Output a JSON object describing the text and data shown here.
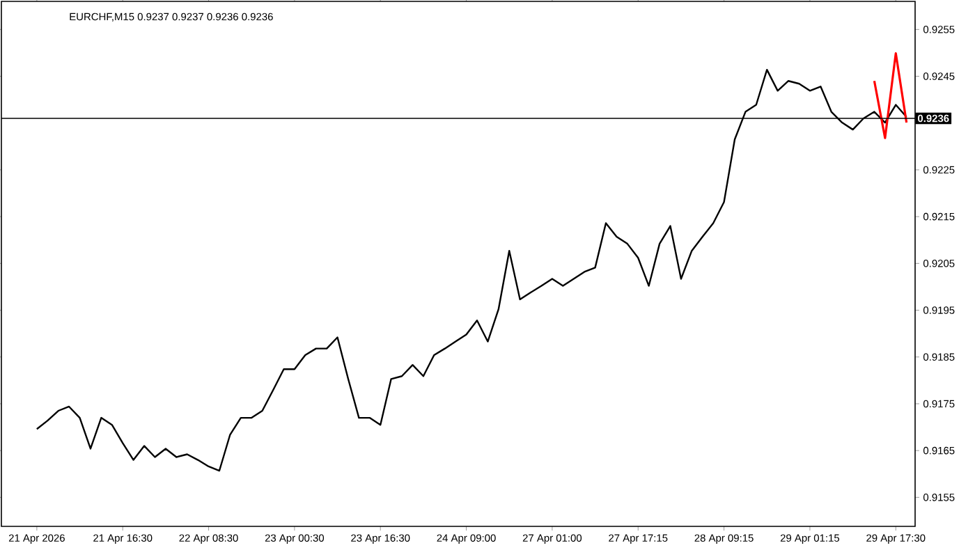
{
  "chart_data": {
    "type": "line",
    "title": "EURCHF,M15  0.9237 0.9237 0.9236 0.9236",
    "categories": [
      "21 Apr 2026",
      null,
      null,
      null,
      null,
      null,
      null,
      null,
      "21 Apr 16:30",
      null,
      null,
      null,
      null,
      null,
      null,
      null,
      "22 Apr 08:30",
      null,
      null,
      null,
      null,
      null,
      null,
      null,
      "23 Apr 00:30",
      null,
      null,
      null,
      null,
      null,
      null,
      null,
      "23 Apr 16:30",
      null,
      null,
      null,
      null,
      null,
      null,
      null,
      "24 Apr 09:00",
      null,
      null,
      null,
      null,
      null,
      null,
      null,
      "27 Apr 01:00",
      null,
      null,
      null,
      null,
      null,
      null,
      null,
      "27 Apr 17:15",
      null,
      null,
      null,
      null,
      null,
      null,
      null,
      "28 Apr 09:15",
      null,
      null,
      null,
      null,
      null,
      null,
      null,
      "29 Apr 01:15",
      null,
      null,
      null,
      null,
      null,
      null,
      null,
      "29 Apr 17:30",
      null
    ],
    "ylim": [
      0.91488,
      0.9261
    ],
    "yticks": [
      0.9155,
      0.9165,
      0.9175,
      0.9185,
      0.9195,
      0.9205,
      0.9215,
      0.9225,
      0.9245,
      0.9255
    ],
    "grid": false,
    "ref_lines": [
      {
        "axis": "y",
        "value": 0.9236,
        "label": "0.9236",
        "color": "#000000"
      }
    ],
    "series": [
      {
        "color": "#000000",
        "values": [
          0.91696,
          0.91714,
          0.91735,
          0.91744,
          0.9172,
          0.91654,
          0.9172,
          0.91705,
          0.91666,
          0.9163,
          0.9166,
          0.91636,
          0.91654,
          0.91636,
          0.91642,
          0.9163,
          0.91616,
          0.91607,
          0.91684,
          0.9172,
          0.9172,
          0.91735,
          0.91779,
          0.91824,
          0.91824,
          0.91854,
          0.91868,
          0.91868,
          0.91892,
          0.91803,
          0.9172,
          0.9172,
          0.91705,
          0.91803,
          0.91809,
          0.91833,
          0.91809,
          0.91854,
          0.91868,
          0.91883,
          0.91898,
          0.91928,
          0.91883,
          0.91952,
          0.92077,
          0.91973,
          0.91988,
          0.92002,
          0.92017,
          0.92002,
          0.92017,
          0.92032,
          0.92041,
          0.92136,
          0.92107,
          0.92092,
          0.92062,
          0.92002,
          0.92092,
          0.9213,
          0.92017,
          0.92077,
          0.92107,
          0.92136,
          0.92181,
          0.92315,
          0.92374,
          0.92389,
          0.92464,
          0.92419,
          0.9244,
          0.92434,
          0.92419,
          0.92428,
          0.92374,
          0.92351,
          0.92336,
          0.9236,
          0.92374,
          0.92351,
          0.92389,
          0.92363
        ]
      },
      {
        "color": "#ff0000",
        "values": [
          null,
          null,
          null,
          null,
          null,
          null,
          null,
          null,
          null,
          null,
          null,
          null,
          null,
          null,
          null,
          null,
          null,
          null,
          null,
          null,
          null,
          null,
          null,
          null,
          null,
          null,
          null,
          null,
          null,
          null,
          null,
          null,
          null,
          null,
          null,
          null,
          null,
          null,
          null,
          null,
          null,
          null,
          null,
          null,
          null,
          null,
          null,
          null,
          null,
          null,
          null,
          null,
          null,
          null,
          null,
          null,
          null,
          null,
          null,
          null,
          null,
          null,
          null,
          null,
          null,
          null,
          null,
          null,
          null,
          null,
          null,
          null,
          null,
          null,
          null,
          null,
          null,
          null,
          0.9244,
          0.92318,
          0.92499,
          0.92351
        ]
      }
    ]
  }
}
